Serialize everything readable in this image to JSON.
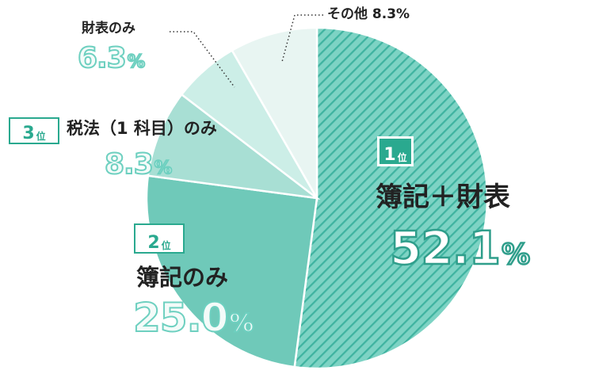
{
  "chart_data": {
    "type": "pie",
    "categories": [
      "簿記＋財表",
      "簿記のみ",
      "税法（1科目）のみ",
      "財表のみ",
      "その他"
    ],
    "values": [
      52.1,
      25.0,
      8.3,
      6.3,
      8.3
    ],
    "colors": [
      "#5ec4b4",
      "#6fc9b9",
      "#a8dfd4",
      "#cceee7",
      "#e8f5f2"
    ],
    "hatched_first": true,
    "legend": "none"
  },
  "labels": {
    "s1_rank_num": "1",
    "s1_rank_word": "位",
    "s1_name": "簿記＋財表",
    "s1_pct": "52.1",
    "s2_rank_num": "2",
    "s2_rank_word": "位",
    "s2_name": "簿記のみ",
    "s2_pct": "25.0",
    "s3_rank_num": "3",
    "s3_rank_word": "位",
    "s3_name": "税法（1 科目）のみ",
    "s3_pct": "8.3",
    "s4_name": "財表のみ",
    "s4_pct": "6.3",
    "s5_text": "その他 8.3%",
    "unit": "%"
  }
}
